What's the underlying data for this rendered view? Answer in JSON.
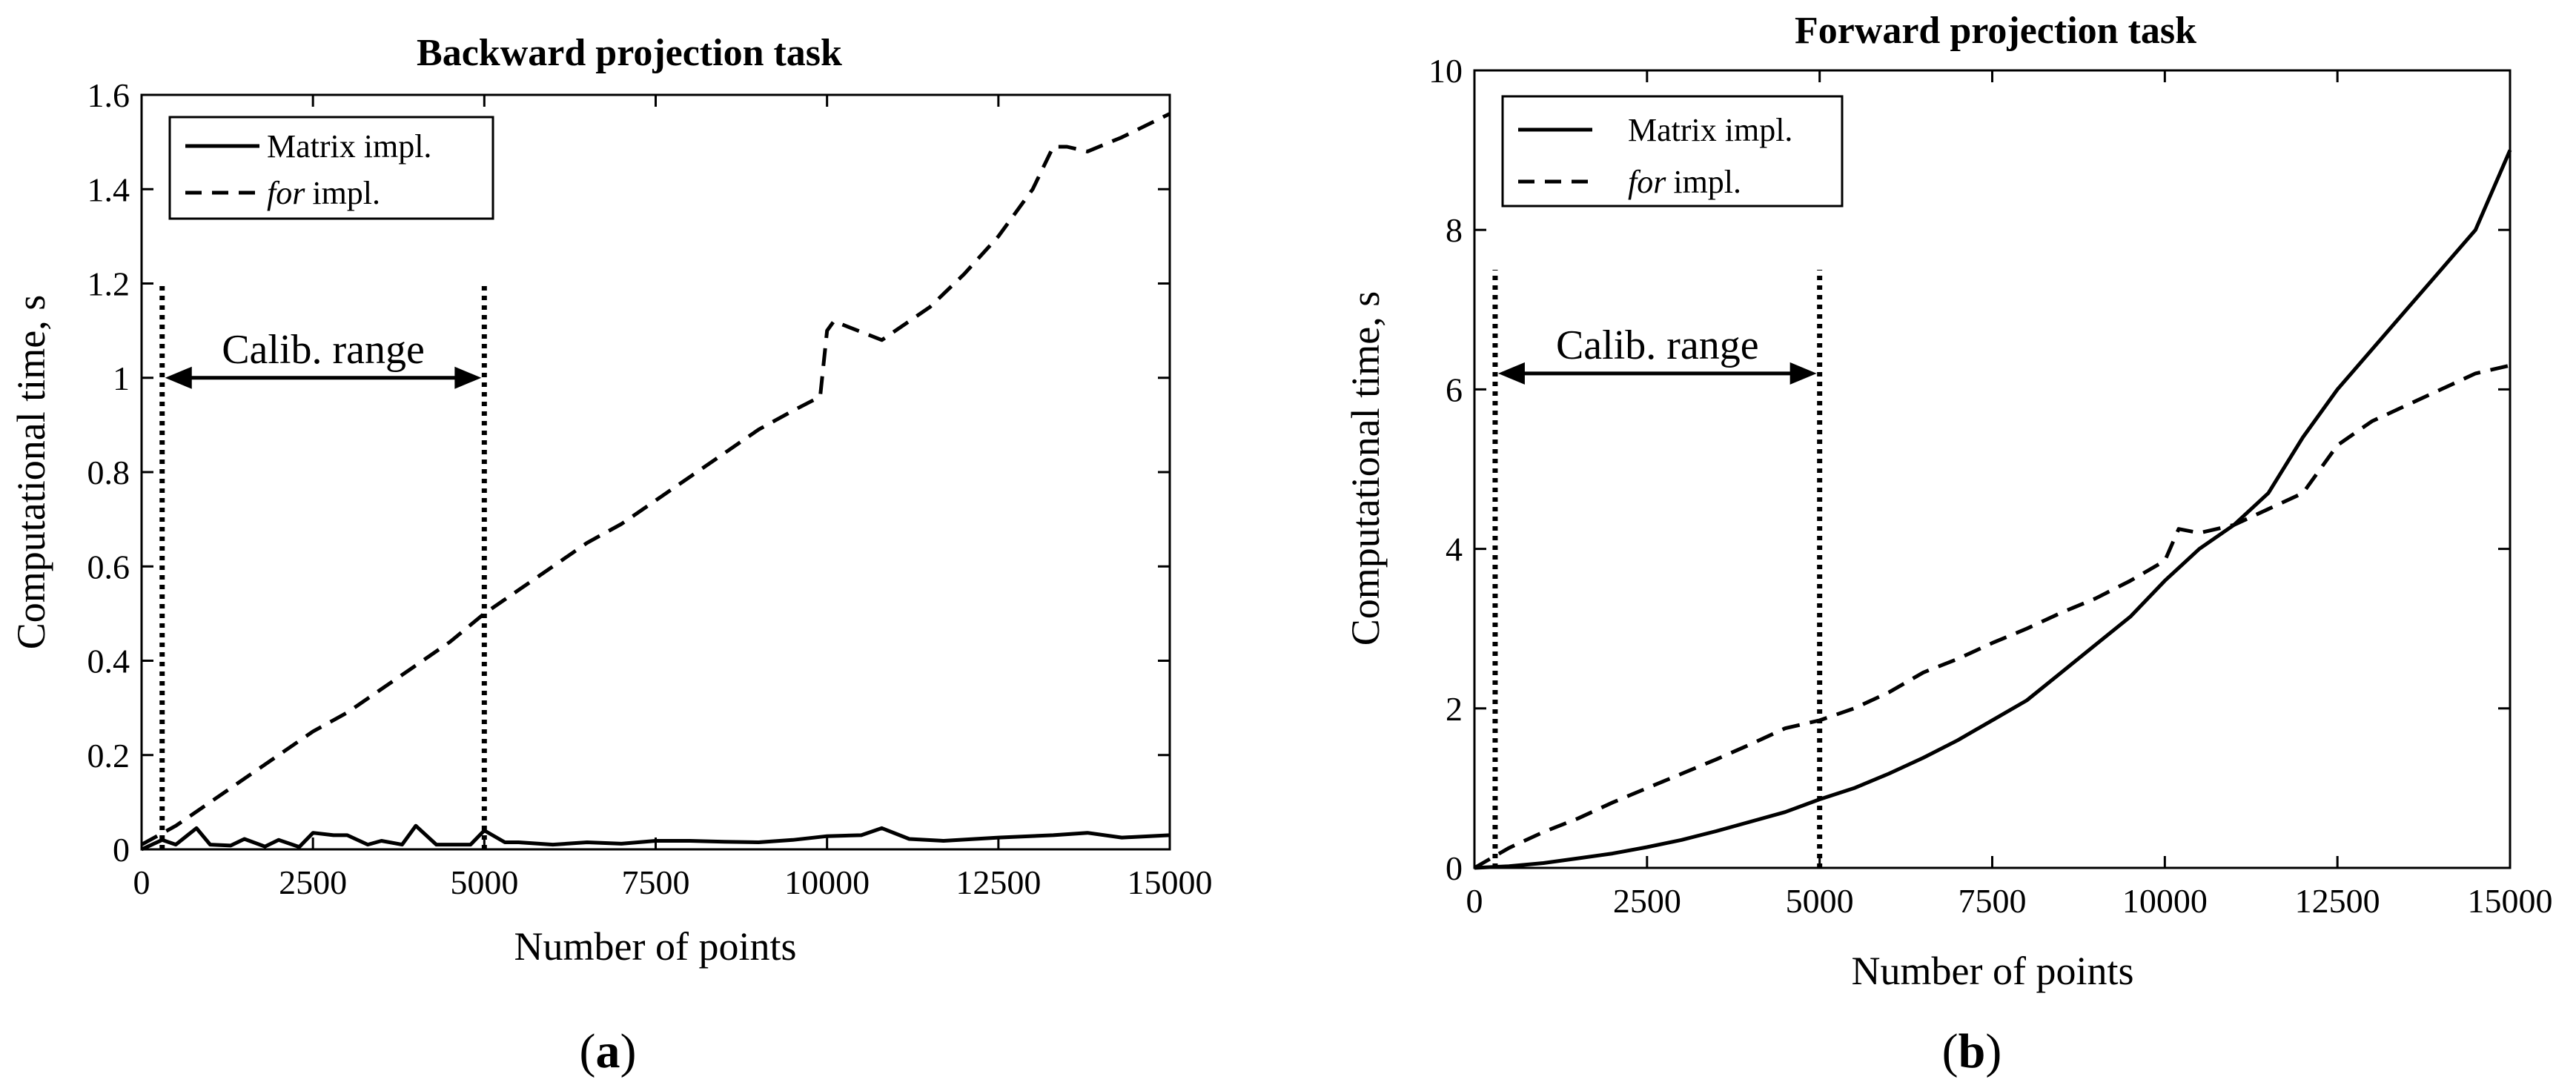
{
  "chart_data": [
    {
      "type": "line",
      "panel_label": "(a)",
      "title": "Backward projection task",
      "xlabel": "Number of points",
      "ylabel": "Computational time, s",
      "xlim": [
        0,
        15000
      ],
      "ylim": [
        0,
        1.6
      ],
      "xticks": [
        0,
        2500,
        5000,
        7500,
        10000,
        12500,
        15000
      ],
      "xtick_labels": [
        "0",
        "2500",
        "5000",
        "7500",
        "10000",
        "12500",
        "15000"
      ],
      "yticks": [
        0,
        0.2,
        0.4,
        0.6,
        0.8,
        1,
        1.2,
        1.4,
        1.6
      ],
      "ytick_labels": [
        "0",
        "0.2",
        "0.4",
        "0.6",
        "0.8",
        "1",
        "1.2",
        "1.4",
        "1.6"
      ],
      "legend": {
        "placement": "top-left",
        "entries": [
          "Matrix impl.",
          "impl."
        ],
        "italic_prefix": [
          "",
          "for"
        ]
      },
      "annotation": {
        "text": "Calib. range",
        "x_from": 300,
        "x_to": 5000,
        "y": 1.0,
        "vline_top": 1.2
      },
      "series": [
        {
          "name": "Matrix impl.",
          "style": "solid",
          "x": [
            0,
            300,
            500,
            800,
            1000,
            1300,
            1500,
            1800,
            2000,
            2300,
            2500,
            2800,
            3000,
            3300,
            3500,
            3800,
            4000,
            4300,
            4500,
            4800,
            5000,
            5300,
            5500,
            6000,
            6500,
            7000,
            7500,
            8000,
            8500,
            9000,
            9500,
            10000,
            10500,
            10800,
            11200,
            11700,
            12500,
            13300,
            13800,
            14300,
            15000
          ],
          "values": [
            0.0,
            0.02,
            0.01,
            0.045,
            0.01,
            0.008,
            0.022,
            0.006,
            0.02,
            0.005,
            0.035,
            0.03,
            0.03,
            0.01,
            0.018,
            0.01,
            0.05,
            0.01,
            0.01,
            0.01,
            0.04,
            0.015,
            0.015,
            0.01,
            0.015,
            0.012,
            0.018,
            0.018,
            0.016,
            0.015,
            0.02,
            0.028,
            0.03,
            0.045,
            0.022,
            0.018,
            0.025,
            0.03,
            0.035,
            0.025,
            0.03
          ]
        },
        {
          "name": "for impl.",
          "style": "dashed",
          "x": [
            0,
            500,
            1000,
            1500,
            2000,
            2500,
            3000,
            3500,
            4000,
            4500,
            5000,
            5500,
            6000,
            6500,
            7000,
            7500,
            8000,
            8500,
            9000,
            9500,
            9900,
            10000,
            10100,
            10800,
            11500,
            12000,
            12500,
            13000,
            13300,
            13500,
            13800,
            14300,
            15000
          ],
          "values": [
            0.01,
            0.05,
            0.1,
            0.15,
            0.2,
            0.25,
            0.29,
            0.34,
            0.39,
            0.44,
            0.5,
            0.55,
            0.6,
            0.65,
            0.69,
            0.74,
            0.79,
            0.84,
            0.89,
            0.93,
            0.96,
            1.1,
            1.12,
            1.08,
            1.15,
            1.22,
            1.3,
            1.4,
            1.49,
            1.49,
            1.48,
            1.51,
            1.56
          ]
        }
      ]
    },
    {
      "type": "line",
      "panel_label": "(b)",
      "title": "Forward projection task",
      "xlabel": "Number of points",
      "ylabel": "Computational time, s",
      "xlim": [
        0,
        15000
      ],
      "ylim": [
        0,
        10
      ],
      "xticks": [
        0,
        2500,
        5000,
        7500,
        10000,
        12500,
        15000
      ],
      "xtick_labels": [
        "0",
        "2500",
        "5000",
        "7500",
        "10000",
        "12500",
        "15000"
      ],
      "yticks": [
        0,
        2,
        4,
        6,
        8,
        10
      ],
      "ytick_labels": [
        "0",
        "2",
        "4",
        "6",
        "8",
        "10"
      ],
      "legend": {
        "placement": "top-left",
        "entries": [
          "Matrix impl.",
          "impl."
        ],
        "italic_prefix": [
          "",
          "for"
        ]
      },
      "annotation": {
        "text": "Calib. range",
        "x_from": 300,
        "x_to": 5000,
        "y": 6.2,
        "vline_top": 7.5
      },
      "series": [
        {
          "name": "Matrix impl.",
          "style": "solid",
          "x": [
            0,
            500,
            1000,
            1500,
            2000,
            2500,
            3000,
            3500,
            4000,
            4500,
            5000,
            5500,
            6000,
            6500,
            7000,
            7500,
            8000,
            8500,
            9000,
            9500,
            10000,
            10500,
            11000,
            11500,
            12000,
            12500,
            13000,
            13500,
            14000,
            14500,
            15000
          ],
          "values": [
            0.0,
            0.02,
            0.06,
            0.12,
            0.18,
            0.26,
            0.35,
            0.46,
            0.58,
            0.7,
            0.86,
            1.0,
            1.18,
            1.38,
            1.6,
            1.85,
            2.1,
            2.45,
            2.8,
            3.15,
            3.6,
            4.0,
            4.3,
            4.7,
            5.4,
            6.0,
            6.5,
            7.0,
            7.5,
            8.0,
            9.0
          ]
        },
        {
          "name": "for impl.",
          "style": "dashed",
          "x": [
            0,
            500,
            1000,
            1500,
            2000,
            2500,
            3000,
            3500,
            4000,
            4500,
            5000,
            5500,
            6000,
            6500,
            7000,
            7500,
            8000,
            8500,
            9000,
            9500,
            10000,
            10200,
            10500,
            11000,
            11500,
            12000,
            12500,
            13000,
            13500,
            14000,
            14500,
            15000
          ],
          "values": [
            0.0,
            0.25,
            0.45,
            0.62,
            0.82,
            1.0,
            1.18,
            1.36,
            1.55,
            1.75,
            1.85,
            2.0,
            2.2,
            2.45,
            2.62,
            2.82,
            3.0,
            3.2,
            3.38,
            3.6,
            3.85,
            4.25,
            4.2,
            4.3,
            4.5,
            4.7,
            5.3,
            5.6,
            5.8,
            6.0,
            6.2,
            6.3
          ]
        }
      ]
    }
  ]
}
